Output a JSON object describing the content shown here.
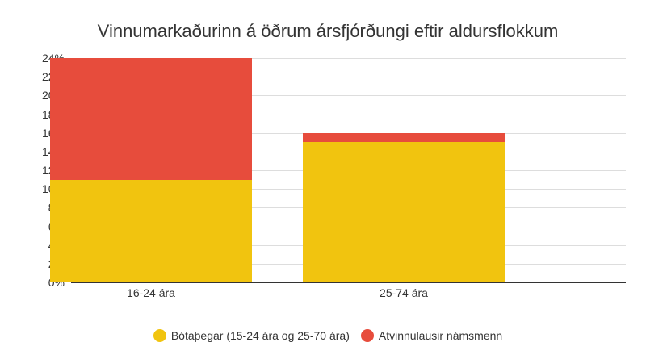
{
  "chart_data": {
    "type": "bar",
    "stacked": true,
    "title": "Vinnumarkaðurinn á öðrum ársfjórðungi eftir aldursflokkum",
    "xlabel": "",
    "ylabel": "",
    "categories": [
      "16-24 ára",
      "25-74 ára"
    ],
    "series": [
      {
        "name": "Bótaþegar (15-24 ára og 25-70 ára)",
        "color": "#f1c40f",
        "values": [
          11,
          15
        ]
      },
      {
        "name": "Atvinnulausir námsmenn",
        "color": "#e74c3c",
        "values": [
          13,
          1
        ]
      }
    ],
    "ylim": [
      0,
      24
    ],
    "yticks": [
      "0%",
      "2%",
      "4%",
      "6%",
      "8%",
      "10%",
      "12%",
      "14%",
      "16%",
      "18%",
      "20%",
      "22%",
      "24%"
    ],
    "grid": true,
    "legend_position": "bottom"
  },
  "legend": {
    "items": [
      {
        "label": "Bótaþegar (15-24 ára og 25-70 ára)",
        "color": "#f1c40f"
      },
      {
        "label": "Atvinnulausir námsmenn",
        "color": "#e74c3c"
      }
    ]
  }
}
